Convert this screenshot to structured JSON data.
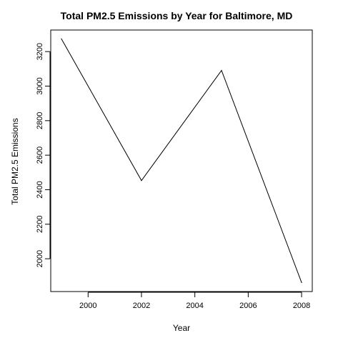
{
  "chart_data": {
    "type": "line",
    "title": "Total PM2.5 Emissions by Year for Baltimore, MD",
    "xlabel": "Year",
    "ylabel": "Total PM2.5 Emissions",
    "x": [
      1999,
      2002,
      2005,
      2008
    ],
    "series": [
      {
        "values": [
          3274,
          2453,
          3091,
          1862
        ]
      }
    ],
    "xlim": [
      1998.6,
      2008.4
    ],
    "ylim": [
      1810,
      3325
    ],
    "xticks": [
      "2000",
      "2002",
      "2004",
      "2006",
      "2008"
    ],
    "yticks": [
      "2000",
      "2200",
      "2400",
      "2600",
      "2800",
      "3000",
      "3200"
    ],
    "grid": false,
    "line_color": "#000000"
  }
}
